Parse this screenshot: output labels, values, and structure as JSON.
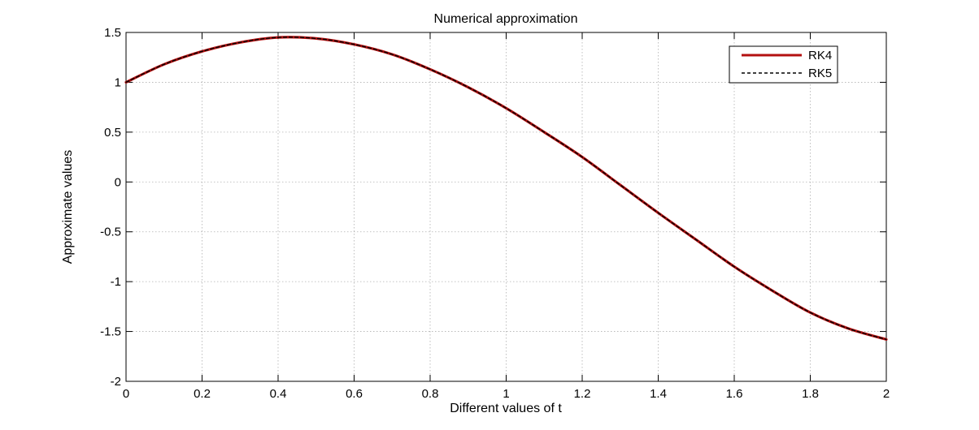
{
  "chart_data": {
    "type": "line",
    "title": "Numerical approximation",
    "xlabel": "Different values of t",
    "ylabel": "Approximate values",
    "xlim": [
      0,
      2
    ],
    "ylim": [
      -2,
      1.5
    ],
    "x_ticks": [
      0,
      0.2,
      0.4,
      0.6,
      0.8,
      1,
      1.2,
      1.4,
      1.6,
      1.8,
      2
    ],
    "y_ticks": [
      1.5,
      1,
      0.5,
      0,
      -0.5,
      -1,
      -1.5,
      -2
    ],
    "x_tick_labels": [
      "0",
      "0.2",
      "0.4",
      "0.6",
      "0.8",
      "1",
      "1.2",
      "1.4",
      "1.6",
      "1.8",
      "2"
    ],
    "y_tick_labels": [
      "1.5",
      "1",
      "0.5",
      "0",
      "-0.5",
      "-1",
      "-1.5",
      "-2"
    ],
    "grid": true,
    "legend_position": "top-right",
    "x": [
      0,
      0.1,
      0.2,
      0.3,
      0.4,
      0.5,
      0.6,
      0.7,
      0.8,
      0.9,
      1.0,
      1.1,
      1.2,
      1.3,
      1.4,
      1.5,
      1.6,
      1.7,
      1.8,
      1.9,
      2.0
    ],
    "series": [
      {
        "name": "RK4",
        "color": "#b31010",
        "line_style": "solid",
        "values": [
          1.0,
          1.18,
          1.31,
          1.4,
          1.45,
          1.44,
          1.38,
          1.28,
          1.13,
          0.95,
          0.74,
          0.5,
          0.25,
          -0.03,
          -0.31,
          -0.58,
          -0.85,
          -1.09,
          -1.31,
          -1.47,
          -1.58
        ]
      },
      {
        "name": "RK5",
        "color": "#000000",
        "line_style": "dashed",
        "values": [
          1.0,
          1.18,
          1.31,
          1.4,
          1.45,
          1.44,
          1.38,
          1.28,
          1.13,
          0.95,
          0.74,
          0.5,
          0.25,
          -0.03,
          -0.31,
          -0.58,
          -0.85,
          -1.09,
          -1.31,
          -1.47,
          -1.58
        ]
      }
    ]
  }
}
